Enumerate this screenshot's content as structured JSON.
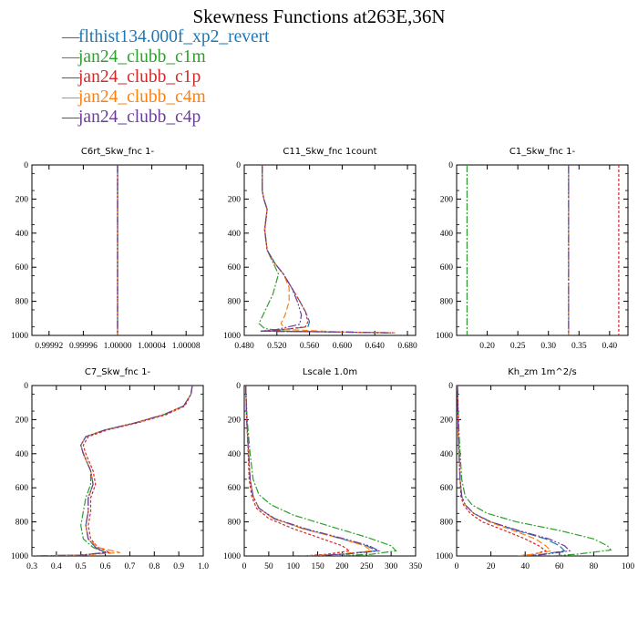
{
  "title": "Skewness Functions at263E,36N",
  "legend": [
    {
      "label": "flthist134.000f_xp2_revert",
      "color": "#1f77b4"
    },
    {
      "label": "jan24_clubb_c1m",
      "color": "#2ca02c"
    },
    {
      "label": "jan24_clubb_c1p",
      "color": "#d62728"
    },
    {
      "label": "jan24_clubb_c4m",
      "color": "#ff7f0e"
    },
    {
      "label": "jan24_clubb_c4p",
      "color": "#6a3d9a"
    }
  ],
  "chart_data": [
    {
      "type": "line",
      "title": "C6rt_Skw_fnc   1-",
      "xlim": [
        0.9999,
        1.0001
      ],
      "ylim": [
        1000,
        0
      ],
      "xticks": [
        0.99992,
        0.99996,
        1.0,
        1.00004,
        1.00008
      ],
      "xtick_labels": [
        "0.99992",
        "0.99996",
        "1.00000",
        "1.00004",
        "1.00008"
      ],
      "yticks": [
        0,
        200,
        400,
        600,
        800,
        1000
      ],
      "series": [
        {
          "name": "flthist134.000f_xp2_revert",
          "x": [
            1.0,
            1.0
          ],
          "y": [
            0,
            1000
          ]
        },
        {
          "name": "jan24_clubb_c1m",
          "x": [
            1.0,
            1.0
          ],
          "y": [
            0,
            1000
          ]
        },
        {
          "name": "jan24_clubb_c1p",
          "x": [
            1.0,
            1.0
          ],
          "y": [
            0,
            1000
          ]
        },
        {
          "name": "jan24_clubb_c4m",
          "x": [
            1.0,
            1.0
          ],
          "y": [
            0,
            1000
          ]
        },
        {
          "name": "jan24_clubb_c4p",
          "x": [
            1.0,
            1.0
          ],
          "y": [
            0,
            1000
          ]
        }
      ]
    },
    {
      "type": "line",
      "title": "C11_Skw_fnc   1count",
      "xlim": [
        0.48,
        0.69
      ],
      "ylim": [
        1000,
        0
      ],
      "xticks": [
        0.48,
        0.52,
        0.56,
        0.6,
        0.64,
        0.68
      ],
      "xtick_labels": [
        "0.480",
        "0.520",
        "0.560",
        "0.600",
        "0.640",
        "0.680"
      ],
      "yticks": [
        0,
        200,
        400,
        600,
        800,
        1000
      ],
      "series": [
        {
          "name": "flthist134.000f_xp2_revert",
          "x": [
            0.502,
            0.502,
            0.504,
            0.508,
            0.505,
            0.508,
            0.518,
            0.528,
            0.538,
            0.548,
            0.555,
            0.56,
            0.558,
            0.52,
            0.5,
            0.6,
            0.66
          ],
          "y": [
            0,
            150,
            200,
            260,
            380,
            500,
            580,
            640,
            720,
            800,
            860,
            920,
            950,
            970,
            975,
            980,
            985
          ]
        },
        {
          "name": "jan24_clubb_c1m",
          "x": [
            0.502,
            0.502,
            0.504,
            0.508,
            0.505,
            0.508,
            0.516,
            0.522,
            0.515,
            0.505,
            0.498,
            0.505,
            0.53,
            0.6,
            0.66
          ],
          "y": [
            0,
            150,
            200,
            260,
            380,
            500,
            580,
            640,
            760,
            860,
            930,
            960,
            975,
            980,
            985
          ]
        },
        {
          "name": "jan24_clubb_c1p",
          "x": [
            0.502,
            0.502,
            0.504,
            0.508,
            0.505,
            0.508,
            0.518,
            0.528,
            0.538,
            0.548,
            0.555,
            0.558,
            0.555,
            0.52,
            0.5,
            0.6,
            0.665
          ],
          "y": [
            0,
            150,
            200,
            260,
            380,
            500,
            580,
            640,
            720,
            800,
            860,
            920,
            950,
            970,
            975,
            980,
            985
          ]
        },
        {
          "name": "jan24_clubb_c4m",
          "x": [
            0.502,
            0.502,
            0.504,
            0.508,
            0.505,
            0.508,
            0.518,
            0.528,
            0.535,
            0.535,
            0.53,
            0.525,
            0.53,
            0.6,
            0.665
          ],
          "y": [
            0,
            150,
            200,
            260,
            380,
            500,
            580,
            640,
            720,
            800,
            880,
            930,
            965,
            980,
            985
          ]
        },
        {
          "name": "jan24_clubb_c4p",
          "x": [
            0.502,
            0.502,
            0.504,
            0.508,
            0.505,
            0.508,
            0.518,
            0.528,
            0.538,
            0.545,
            0.55,
            0.548,
            0.52,
            0.5,
            0.6,
            0.66
          ],
          "y": [
            0,
            150,
            200,
            260,
            380,
            500,
            580,
            640,
            720,
            800,
            880,
            935,
            965,
            975,
            980,
            985
          ]
        }
      ]
    },
    {
      "type": "line",
      "title": "C1_Skw_fnc   1-",
      "xlim": [
        0.15,
        0.43
      ],
      "ylim": [
        1000,
        0
      ],
      "xticks": [
        0.2,
        0.25,
        0.3,
        0.35,
        0.4
      ],
      "xtick_labels": [
        "0.20",
        "0.25",
        "0.30",
        "0.35",
        "0.40"
      ],
      "yticks": [
        0,
        200,
        400,
        600,
        800,
        1000
      ],
      "series": [
        {
          "name": "flthist134.000f_xp2_revert",
          "x": [
            0.333,
            0.333
          ],
          "y": [
            0,
            1000
          ]
        },
        {
          "name": "jan24_clubb_c1m",
          "x": [
            0.167,
            0.167
          ],
          "y": [
            0,
            1000
          ]
        },
        {
          "name": "jan24_clubb_c1p",
          "x": [
            0.415,
            0.415
          ],
          "y": [
            0,
            1000
          ]
        },
        {
          "name": "jan24_clubb_c4m",
          "x": [
            0.333,
            0.333
          ],
          "y": [
            0,
            1000
          ]
        },
        {
          "name": "jan24_clubb_c4p",
          "x": [
            0.333,
            0.333
          ],
          "y": [
            0,
            1000
          ]
        }
      ]
    },
    {
      "type": "line",
      "title": "C7_Skw_fnc   1-",
      "xlim": [
        0.3,
        1.0
      ],
      "ylim": [
        1000,
        0
      ],
      "xticks": [
        0.3,
        0.4,
        0.5,
        0.6,
        0.7,
        0.8,
        0.9,
        1.0
      ],
      "xtick_labels": [
        "0.3",
        "0.4",
        "0.5",
        "0.6",
        "0.7",
        "0.8",
        "0.9",
        "1.0"
      ],
      "yticks": [
        0,
        200,
        400,
        600,
        800,
        1000
      ],
      "series": [
        {
          "name": "flthist134.000f_xp2_revert",
          "x": [
            0.955,
            0.95,
            0.92,
            0.84,
            0.72,
            0.6,
            0.52,
            0.5,
            0.51,
            0.54,
            0.55,
            0.53,
            0.53,
            0.52,
            0.53,
            0.56,
            0.6,
            0.5,
            0.3
          ],
          "y": [
            0,
            50,
            120,
            170,
            220,
            260,
            300,
            350,
            400,
            500,
            580,
            660,
            740,
            820,
            900,
            950,
            980,
            995,
            1000
          ]
        },
        {
          "name": "jan24_clubb_c1m",
          "x": [
            0.955,
            0.95,
            0.92,
            0.84,
            0.72,
            0.6,
            0.52,
            0.5,
            0.51,
            0.54,
            0.54,
            0.52,
            0.51,
            0.5,
            0.51,
            0.55,
            0.6,
            0.5,
            0.3
          ],
          "y": [
            0,
            50,
            120,
            170,
            220,
            260,
            300,
            350,
            400,
            500,
            580,
            660,
            740,
            820,
            900,
            950,
            980,
            995,
            1000
          ]
        },
        {
          "name": "jan24_clubb_c1p",
          "x": [
            0.955,
            0.95,
            0.925,
            0.85,
            0.73,
            0.61,
            0.53,
            0.51,
            0.52,
            0.55,
            0.56,
            0.54,
            0.54,
            0.53,
            0.54,
            0.57,
            0.62,
            0.5,
            0.3
          ],
          "y": [
            0,
            50,
            120,
            170,
            220,
            260,
            300,
            350,
            400,
            500,
            580,
            660,
            740,
            820,
            900,
            950,
            980,
            995,
            1000
          ]
        },
        {
          "name": "jan24_clubb_c4m",
          "x": [
            0.955,
            0.95,
            0.92,
            0.84,
            0.72,
            0.6,
            0.52,
            0.5,
            0.51,
            0.54,
            0.55,
            0.53,
            0.53,
            0.52,
            0.53,
            0.57,
            0.66,
            0.5,
            0.3
          ],
          "y": [
            0,
            50,
            120,
            170,
            220,
            260,
            300,
            350,
            400,
            500,
            580,
            660,
            740,
            820,
            900,
            950,
            980,
            995,
            1000
          ]
        },
        {
          "name": "jan24_clubb_c4p",
          "x": [
            0.955,
            0.95,
            0.92,
            0.84,
            0.72,
            0.6,
            0.52,
            0.5,
            0.51,
            0.54,
            0.55,
            0.53,
            0.53,
            0.52,
            0.53,
            0.56,
            0.6,
            0.5,
            0.3
          ],
          "y": [
            0,
            50,
            120,
            170,
            220,
            260,
            300,
            350,
            400,
            500,
            580,
            660,
            740,
            820,
            900,
            950,
            980,
            995,
            1000
          ]
        }
      ]
    },
    {
      "type": "line",
      "title": "Lscale   1.0m",
      "xlim": [
        0,
        350
      ],
      "ylim": [
        1000,
        0
      ],
      "xticks": [
        0,
        50,
        100,
        150,
        200,
        250,
        300,
        350
      ],
      "xtick_labels": [
        "0",
        "50",
        "100",
        "150",
        "200",
        "250",
        "300",
        "350"
      ],
      "yticks": [
        0,
        200,
        400,
        600,
        800,
        1000
      ],
      "series": [
        {
          "name": "flthist134.000f_xp2_revert",
          "x": [
            3,
            5,
            9,
            12,
            18,
            30,
            60,
            120,
            200,
            250,
            270,
            200,
            130
          ],
          "y": [
            0,
            200,
            400,
            550,
            650,
            720,
            780,
            840,
            900,
            940,
            970,
            990,
            1000
          ]
        },
        {
          "name": "jan24_clubb_c1m",
          "x": [
            3,
            6,
            12,
            18,
            30,
            55,
            100,
            180,
            250,
            300,
            310,
            260,
            180
          ],
          "y": [
            0,
            200,
            400,
            550,
            640,
            700,
            760,
            830,
            890,
            940,
            970,
            990,
            1000
          ]
        },
        {
          "name": "jan24_clubb_c1p",
          "x": [
            3,
            5,
            8,
            10,
            15,
            25,
            50,
            100,
            160,
            200,
            215,
            170,
            120
          ],
          "y": [
            0,
            200,
            400,
            550,
            650,
            720,
            780,
            840,
            900,
            940,
            970,
            990,
            1000
          ]
        },
        {
          "name": "jan24_clubb_c4m",
          "x": [
            3,
            5,
            9,
            12,
            18,
            30,
            60,
            120,
            200,
            245,
            260,
            190,
            130
          ],
          "y": [
            0,
            200,
            400,
            550,
            650,
            720,
            780,
            840,
            900,
            940,
            970,
            990,
            1000
          ]
        },
        {
          "name": "jan24_clubb_c4p",
          "x": [
            3,
            5,
            9,
            12,
            18,
            30,
            62,
            125,
            205,
            255,
            275,
            205,
            135
          ],
          "y": [
            0,
            200,
            400,
            550,
            650,
            720,
            780,
            840,
            900,
            940,
            970,
            990,
            1000
          ]
        }
      ]
    },
    {
      "type": "line",
      "title": "Kh_zm   1m^2/s",
      "xlim": [
        0,
        100
      ],
      "ylim": [
        1000,
        0
      ],
      "xticks": [
        0,
        20,
        40,
        60,
        80,
        100
      ],
      "xtick_labels": [
        "0",
        "20",
        "40",
        "60",
        "80",
        "100"
      ],
      "yticks": [
        0,
        200,
        400,
        600,
        800,
        1000
      ],
      "series": [
        {
          "name": "flthist134.000f_xp2_revert",
          "x": [
            0.5,
            1,
            2,
            3,
            5,
            10,
            20,
            35,
            52,
            60,
            63,
            50,
            40
          ],
          "y": [
            0,
            300,
            550,
            650,
            700,
            750,
            800,
            850,
            900,
            940,
            970,
            990,
            1000
          ]
        },
        {
          "name": "jan24_clubb_c1m",
          "x": [
            0.5,
            1.5,
            3,
            5,
            9,
            18,
            35,
            60,
            80,
            88,
            90,
            70,
            55
          ],
          "y": [
            0,
            300,
            550,
            650,
            700,
            750,
            800,
            850,
            900,
            940,
            965,
            990,
            1000
          ]
        },
        {
          "name": "jan24_clubb_c1p",
          "x": [
            0.5,
            1,
            2,
            2.5,
            4,
            8,
            15,
            28,
            40,
            48,
            52,
            45,
            35
          ],
          "y": [
            0,
            300,
            550,
            650,
            700,
            750,
            800,
            850,
            900,
            940,
            970,
            990,
            1000
          ]
        },
        {
          "name": "jan24_clubb_c4m",
          "x": [
            0.5,
            1,
            2,
            3,
            5,
            10,
            19,
            33,
            46,
            52,
            55,
            45,
            35
          ],
          "y": [
            0,
            300,
            550,
            650,
            700,
            750,
            800,
            850,
            900,
            940,
            970,
            990,
            1000
          ]
        },
        {
          "name": "jan24_clubb_c4p",
          "x": [
            0.5,
            1,
            2,
            3,
            5,
            10,
            20,
            36,
            54,
            63,
            66,
            52,
            42
          ],
          "y": [
            0,
            300,
            550,
            650,
            700,
            750,
            800,
            850,
            900,
            940,
            970,
            990,
            1000
          ]
        }
      ]
    }
  ]
}
